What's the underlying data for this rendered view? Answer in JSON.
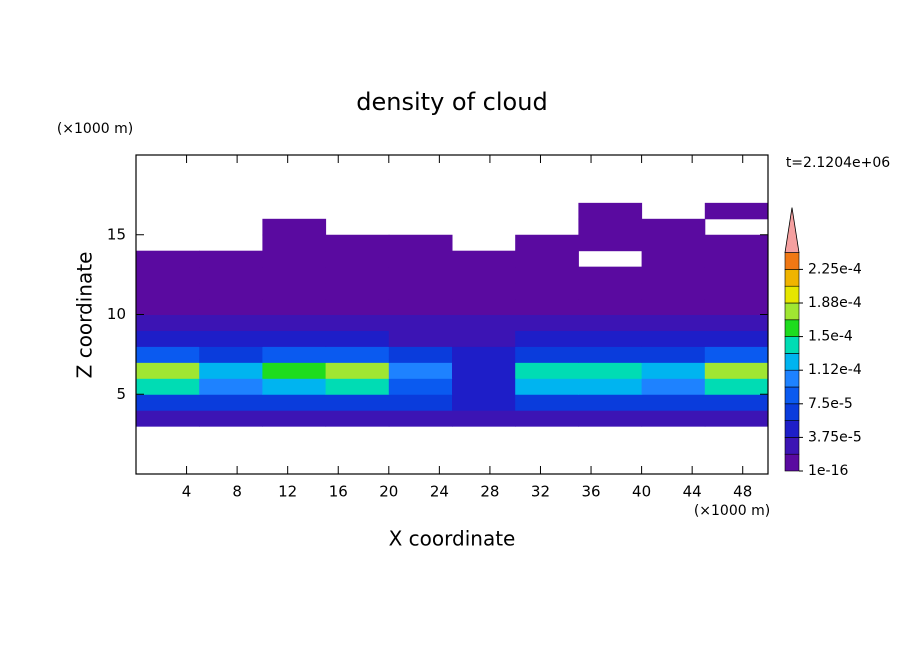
{
  "chart_data": {
    "type": "contour",
    "title": "density of cloud",
    "xlabel": "X coordinate",
    "ylabel": "Z coordinate",
    "x_unit": "(×1000 m)",
    "y_unit": "(×1000 m)",
    "time_label": "t=2.1204e+06",
    "xlim": [
      0,
      50
    ],
    "ylim": [
      0,
      20
    ],
    "xticks": [
      4,
      8,
      12,
      16,
      20,
      24,
      28,
      32,
      36,
      40,
      44,
      48
    ],
    "yticks": [
      5,
      10,
      15
    ],
    "x": [
      2.5,
      7.5,
      12.5,
      17.5,
      22.5,
      27.5,
      32.5,
      37.5,
      42.5,
      47.5
    ],
    "y": [
      3.5,
      4.5,
      5.5,
      6.5,
      7.5,
      8.5,
      9.5,
      10.5,
      11.5,
      12.5,
      13.5,
      14.5,
      15.5,
      16.5
    ],
    "z": [
      [
        2e-05,
        2e-05,
        2e-05,
        2e-05,
        2e-05,
        2e-05,
        2e-05,
        2e-05,
        2e-05,
        2e-05
      ],
      [
        7e-05,
        6e-05,
        7e-05,
        7e-05,
        6e-05,
        4e-05,
        7e-05,
        7e-05,
        6e-05,
        7e-05
      ],
      [
        0.00014,
        0.00011,
        0.00013,
        0.00014,
        9e-05,
        5e-05,
        0.00013,
        0.00013,
        0.0001,
        0.00014
      ],
      [
        0.00017,
        0.00013,
        0.00016,
        0.00017,
        0.00011,
        4e-05,
        0.00014,
        0.00014,
        0.00012,
        0.00017
      ],
      [
        8e-05,
        7e-05,
        9e-05,
        9e-05,
        6e-05,
        5e-05,
        7e-05,
        7e-05,
        7e-05,
        8e-05
      ],
      [
        4e-05,
        4e-05,
        4e-05,
        5e-05,
        3e-05,
        3e-05,
        4e-05,
        4e-05,
        4e-05,
        5e-05
      ],
      [
        2.5e-05,
        2.5e-05,
        2e-05,
        2.5e-05,
        2e-05,
        2e-05,
        2e-05,
        2e-05,
        2.5e-05,
        2.5e-05
      ],
      [
        1.5e-05,
        1e-05,
        1e-05,
        1e-05,
        1e-05,
        1e-05,
        1e-05,
        1e-05,
        1e-05,
        1.5e-05
      ],
      [
        1e-05,
        8e-06,
        5e-06,
        5e-06,
        5e-06,
        5e-06,
        5e-06,
        5e-06,
        5e-06,
        8e-06
      ],
      [
        5e-06,
        5e-06,
        3e-06,
        3e-06,
        3e-06,
        3e-06,
        3e-06,
        3e-06,
        3e-06,
        5e-06
      ],
      [
        3e-06,
        3e-06,
        3e-06,
        3e-06,
        3e-06,
        3e-06,
        3e-06,
        null,
        3e-06,
        3e-06
      ],
      [
        null,
        null,
        3e-06,
        3e-06,
        3e-06,
        null,
        3e-06,
        3e-06,
        3e-06,
        3e-06
      ],
      [
        null,
        null,
        3e-06,
        null,
        null,
        null,
        null,
        3e-06,
        3e-06,
        null
      ],
      [
        null,
        null,
        null,
        null,
        null,
        null,
        null,
        3e-06,
        null,
        3e-06
      ]
    ],
    "levels": [
      1e-16,
      1.875e-05,
      3.75e-05,
      5.625e-05,
      7.5e-05,
      9.375e-05,
      0.0001125,
      0.00013125,
      0.00015,
      0.00016875,
      0.0001875,
      0.00020625,
      0.000225,
      0.00024375
    ],
    "colors": [
      "#5a0aa0",
      "#3c14b4",
      "#1e1ec8",
      "#0a3cdc",
      "#0a5af0",
      "#1e82ff",
      "#00b4f0",
      "#00dcb4",
      "#1edc1e",
      "#a0e632",
      "#e6e600",
      "#f0b400",
      "#f07814"
    ],
    "extend_color": "#f5a0a0",
    "colorbar_ticks": [
      {
        "value": 1e-16,
        "label": "1e-16"
      },
      {
        "value": 3.75e-05,
        "label": "3.75e-5"
      },
      {
        "value": 7.5e-05,
        "label": "7.5e-5"
      },
      {
        "value": 0.0001125,
        "label": "1.12e-4"
      },
      {
        "value": 0.00015,
        "label": "1.5e-4"
      },
      {
        "value": 0.0001875,
        "label": "1.88e-4"
      },
      {
        "value": 0.000225,
        "label": "2.25e-4"
      }
    ]
  }
}
